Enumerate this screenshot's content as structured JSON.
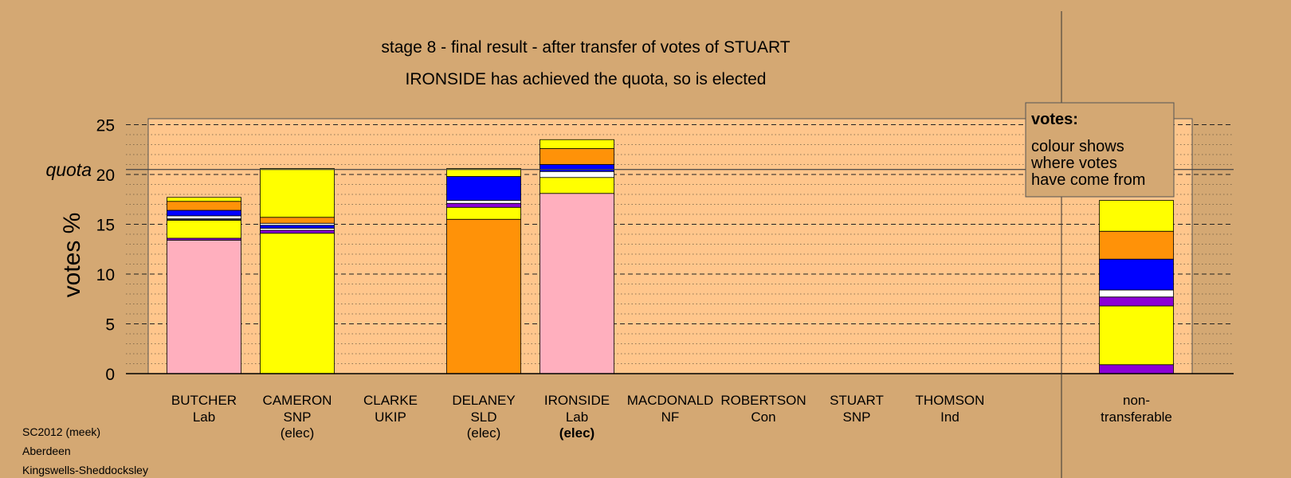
{
  "chart_data": {
    "type": "bar",
    "stacked": true,
    "title": "stage 8 - final result - after transfer of votes of STUART",
    "subtitle": "IRONSIDE has achieved the quota, so is elected",
    "ylabel": "votes %",
    "ylim": [
      0,
      26
    ],
    "yticks": [
      0,
      5,
      10,
      15,
      20,
      25
    ],
    "quota": {
      "label": "quota",
      "value": 20.5
    },
    "grid": true,
    "legend_box": {
      "title": "votes:",
      "lines": [
        "colour shows",
        "where votes",
        "have come from"
      ],
      "position": "top-right"
    },
    "colors": {
      "Lab": "#ffafbe",
      "SNP": "#ffff00",
      "SLD": "#ff9208",
      "Con": "#0000ff",
      "NF": "#ffffff",
      "UKIP": "#8b00d6",
      "Ind": "#333333",
      "plot_bg": "#ffc68c",
      "page_bg": "#d4a873"
    },
    "categories": [
      {
        "name": "BUTCHER",
        "party": "Lab",
        "status": "",
        "segments": [
          {
            "source": "Lab",
            "value": 13.4
          },
          {
            "source": "UKIP",
            "value": 0.2
          },
          {
            "source": "SNP",
            "value": 1.8
          },
          {
            "source": "Ind",
            "value": 0.15
          },
          {
            "source": "NF",
            "value": 0.3
          },
          {
            "source": "Con",
            "value": 0.55
          },
          {
            "source": "SLD",
            "value": 0.9
          },
          {
            "source": "SNP",
            "value": 0.4
          }
        ]
      },
      {
        "name": "CAMERON",
        "party": "SNP",
        "status": "(elec)",
        "segments": [
          {
            "source": "SNP",
            "value": 14.1
          },
          {
            "source": "UKIP",
            "value": 0.3
          },
          {
            "source": "NF",
            "value": 0.2
          },
          {
            "source": "Con",
            "value": 0.3
          },
          {
            "source": "NF",
            "value": 0.2
          },
          {
            "source": "SLD",
            "value": 0.6
          },
          {
            "source": "SNP",
            "value": 4.9
          }
        ]
      },
      {
        "name": "CLARKE",
        "party": "UKIP",
        "status": "",
        "segments": []
      },
      {
        "name": "DELANEY",
        "party": "SLD",
        "status": "(elec)",
        "segments": [
          {
            "source": "SLD",
            "value": 15.5
          },
          {
            "source": "SNP",
            "value": 1.2
          },
          {
            "source": "UKIP",
            "value": 0.4
          },
          {
            "source": "NF",
            "value": 0.3
          },
          {
            "source": "Con",
            "value": 2.4
          },
          {
            "source": "SNP",
            "value": 0.8
          }
        ]
      },
      {
        "name": "IRONSIDE",
        "party": "Lab",
        "status": "(elec)",
        "segments": [
          {
            "source": "Lab",
            "value": 18.1
          },
          {
            "source": "SNP",
            "value": 1.6
          },
          {
            "source": "NF",
            "value": 0.6
          },
          {
            "source": "Con",
            "value": 0.7
          },
          {
            "source": "SLD",
            "value": 1.6
          },
          {
            "source": "SNP",
            "value": 0.9
          }
        ]
      },
      {
        "name": "MACDONALD",
        "party": "NF",
        "status": "",
        "segments": []
      },
      {
        "name": "ROBERTSON",
        "party": "Con",
        "status": "",
        "segments": []
      },
      {
        "name": "STUART",
        "party": "SNP",
        "status": "",
        "segments": []
      },
      {
        "name": "THOMSON",
        "party": "Ind",
        "status": "",
        "segments": []
      }
    ],
    "non_transferable": {
      "label_lines": [
        "non-",
        "transferable"
      ],
      "segments": [
        {
          "source": "UKIP",
          "value": 0.9
        },
        {
          "source": "SNP",
          "value": 5.9
        },
        {
          "source": "UKIP",
          "value": 0.9
        },
        {
          "source": "NF",
          "value": 0.7
        },
        {
          "source": "Con",
          "value": 3.1
        },
        {
          "source": "SLD",
          "value": 2.8
        },
        {
          "source": "SNP",
          "value": 3.1
        }
      ]
    }
  },
  "footer": {
    "line1": "SC2012 (meek)",
    "line2": "Aberdeen",
    "line3": "Kingswells-Sheddocksley"
  }
}
